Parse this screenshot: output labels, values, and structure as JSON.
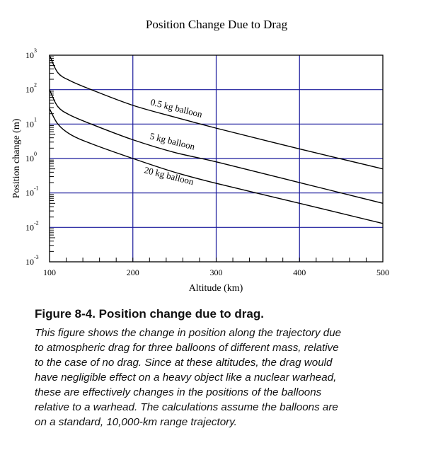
{
  "chart_data": {
    "type": "line",
    "title": "Position Change Due to Drag",
    "xlabel": "Altitude (km)",
    "ylabel": "Position change (m)",
    "xlim": [
      100,
      500
    ],
    "ylim": [
      0.001,
      1000
    ],
    "yscale": "log",
    "grid": true,
    "x_ticks": [
      "100",
      "200",
      "300",
      "400",
      "500"
    ],
    "y_ticks": [
      {
        "base": "10",
        "exp": "3"
      },
      {
        "base": "10",
        "exp": "2"
      },
      {
        "base": "10",
        "exp": "1"
      },
      {
        "base": "10",
        "exp": "0"
      },
      {
        "base": "10",
        "exp": "-1"
      },
      {
        "base": "10",
        "exp": "-2"
      },
      {
        "base": "10",
        "exp": "-3"
      }
    ],
    "x": [
      100,
      110,
      125,
      150,
      200,
      250,
      300,
      400,
      500
    ],
    "series": [
      {
        "name": "0.5 kg balloon",
        "values": [
          1000,
          310,
          180,
          100,
          35,
          16,
          7.6,
          1.9,
          0.5
        ]
      },
      {
        "name": "5 kg balloon",
        "values": [
          100,
          32,
          18,
          10,
          3.5,
          1.5,
          0.8,
          0.2,
          0.05
        ]
      },
      {
        "name": "20 kg balloon",
        "values": [
          28,
          10,
          5,
          2.7,
          1.0,
          0.4,
          0.19,
          0.05,
          0.013
        ]
      }
    ],
    "colors": {
      "grid": "#1a1a9c",
      "lines": "#000000"
    }
  },
  "caption": {
    "title": "Figure 8-4.  Position change due to drag.",
    "lines": [
      "This figure shows the change in position along the trajectory due",
      "to atmospheric drag for three balloons of different mass, relative",
      "to the case of no drag. Since at these altitudes, the drag would",
      "have negligible effect on a heavy object like a nuclear warhead,",
      "these are effectively changes in the positions of the balloons",
      "relative to a warhead. The calculations assume the balloons are",
      "on a standard, 10,000-km range trajectory."
    ]
  }
}
